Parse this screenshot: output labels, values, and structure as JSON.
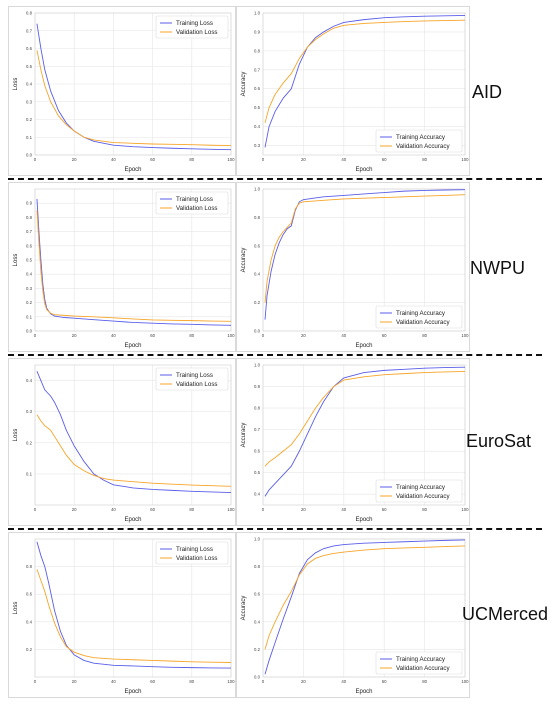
{
  "colors": {
    "training": "#5a5ee8",
    "validation": "#f7a52a",
    "grid": "#e6e6e6",
    "divider": "#111111"
  },
  "chart_data": [
    {
      "id": "aid-loss",
      "type": "line",
      "row_label": "AID",
      "xlabel": "Epoch",
      "ylabel": "Loss",
      "xlim": [
        0,
        100
      ],
      "ylim": [
        0,
        0.8
      ],
      "xticks": [
        0,
        20,
        40,
        60,
        80,
        100
      ],
      "yticks": [
        0,
        0.1,
        0.2,
        0.3,
        0.4,
        0.5,
        0.6,
        0.7,
        0.8
      ],
      "ytick_labels": [
        "0.0",
        "0.1",
        "0.2",
        "0.3",
        "0.4",
        "0.5",
        "0.6",
        "0.7",
        "0.8"
      ],
      "legend_loc": "top-right",
      "series": [
        {
          "name": "Training Loss",
          "x": [
            1,
            3,
            5,
            8,
            12,
            16,
            20,
            25,
            30,
            40,
            50,
            60,
            70,
            80,
            90,
            100
          ],
          "y": [
            0.74,
            0.6,
            0.48,
            0.36,
            0.25,
            0.18,
            0.135,
            0.1,
            0.077,
            0.055,
            0.047,
            0.042,
            0.038,
            0.035,
            0.032,
            0.03
          ]
        },
        {
          "name": "Validation Loss",
          "x": [
            1,
            3,
            5,
            8,
            12,
            16,
            20,
            25,
            30,
            40,
            50,
            60,
            70,
            80,
            90,
            100
          ],
          "y": [
            0.59,
            0.48,
            0.39,
            0.3,
            0.22,
            0.17,
            0.135,
            0.1,
            0.085,
            0.07,
            0.066,
            0.062,
            0.06,
            0.058,
            0.055,
            0.053
          ]
        }
      ]
    },
    {
      "id": "aid-acc",
      "type": "line",
      "row_label": "AID",
      "xlabel": "Epoch",
      "ylabel": "Accuracy",
      "xlim": [
        0,
        100
      ],
      "ylim": [
        0.25,
        1.0
      ],
      "xticks": [
        0,
        20,
        40,
        60,
        80,
        100
      ],
      "yticks": [
        0.3,
        0.4,
        0.5,
        0.6,
        0.7,
        0.8,
        0.9,
        1.0
      ],
      "ytick_labels": [
        "0.3",
        "0.4",
        "0.5",
        "0.6",
        "0.7",
        "0.8",
        "0.9",
        "1.0"
      ],
      "legend_loc": "lower-right",
      "series": [
        {
          "name": "Training Accuracy",
          "x": [
            1,
            3,
            6,
            10,
            14,
            18,
            22,
            26,
            30,
            35,
            40,
            50,
            60,
            70,
            80,
            90,
            100
          ],
          "y": [
            0.29,
            0.4,
            0.48,
            0.55,
            0.6,
            0.73,
            0.82,
            0.87,
            0.9,
            0.93,
            0.95,
            0.965,
            0.975,
            0.98,
            0.983,
            0.985,
            0.987
          ]
        },
        {
          "name": "Validation Accuracy",
          "x": [
            1,
            3,
            6,
            10,
            14,
            18,
            22,
            26,
            30,
            35,
            40,
            50,
            60,
            70,
            80,
            90,
            100
          ],
          "y": [
            0.42,
            0.5,
            0.57,
            0.63,
            0.68,
            0.76,
            0.82,
            0.86,
            0.89,
            0.92,
            0.935,
            0.945,
            0.95,
            0.955,
            0.958,
            0.96,
            0.962
          ]
        }
      ]
    },
    {
      "id": "nwpu-loss",
      "type": "line",
      "row_label": "NWPU",
      "xlabel": "Epoch",
      "ylabel": "Loss",
      "xlim": [
        0,
        100
      ],
      "ylim": [
        0,
        1.0
      ],
      "xticks": [
        0,
        20,
        40,
        60,
        80,
        100
      ],
      "yticks": [
        0,
        0.1,
        0.2,
        0.3,
        0.4,
        0.5,
        0.6,
        0.7,
        0.8,
        0.9
      ],
      "ytick_labels": [
        "0.0",
        "0.1",
        "0.2",
        "0.3",
        "0.4",
        "0.5",
        "0.6",
        "0.7",
        "0.8",
        "0.9"
      ],
      "legend_loc": "top-right",
      "series": [
        {
          "name": "Training Loss",
          "x": [
            1,
            2,
            3,
            4,
            5,
            6,
            8,
            10,
            15,
            20,
            30,
            40,
            50,
            60,
            70,
            80,
            90,
            100
          ],
          "y": [
            0.93,
            0.7,
            0.5,
            0.33,
            0.22,
            0.16,
            0.12,
            0.105,
            0.095,
            0.09,
            0.08,
            0.07,
            0.06,
            0.055,
            0.05,
            0.047,
            0.043,
            0.04
          ]
        },
        {
          "name": "Validation Loss",
          "x": [
            1,
            2,
            3,
            4,
            5,
            6,
            8,
            10,
            15,
            20,
            30,
            40,
            50,
            60,
            70,
            80,
            90,
            100
          ],
          "y": [
            0.85,
            0.62,
            0.42,
            0.28,
            0.19,
            0.15,
            0.125,
            0.115,
            0.11,
            0.105,
            0.1,
            0.093,
            0.085,
            0.078,
            0.075,
            0.073,
            0.07,
            0.068
          ]
        }
      ]
    },
    {
      "id": "nwpu-acc",
      "type": "line",
      "row_label": "NWPU",
      "xlabel": "Epoch",
      "ylabel": "Accuracy",
      "xlim": [
        0,
        100
      ],
      "ylim": [
        0.0,
        1.0
      ],
      "xticks": [
        0,
        20,
        40,
        60,
        80,
        100
      ],
      "yticks": [
        0.0,
        0.2,
        0.4,
        0.6,
        0.8,
        1.0
      ],
      "ytick_labels": [
        "0.0",
        "0.2",
        "0.4",
        "0.6",
        "0.8",
        "1.0"
      ],
      "legend_loc": "lower-right",
      "series": [
        {
          "name": "Training Accuracy",
          "x": [
            1,
            2,
            4,
            6,
            8,
            10,
            12,
            14,
            16,
            18,
            20,
            25,
            30,
            40,
            50,
            60,
            70,
            80,
            90,
            100
          ],
          "y": [
            0.08,
            0.25,
            0.42,
            0.54,
            0.62,
            0.68,
            0.72,
            0.74,
            0.85,
            0.91,
            0.925,
            0.935,
            0.945,
            0.955,
            0.965,
            0.975,
            0.985,
            0.99,
            0.993,
            0.995
          ]
        },
        {
          "name": "Validation Accuracy",
          "x": [
            1,
            2,
            4,
            6,
            8,
            10,
            12,
            14,
            16,
            18,
            20,
            25,
            30,
            40,
            50,
            60,
            70,
            80,
            90,
            100
          ],
          "y": [
            0.2,
            0.35,
            0.5,
            0.6,
            0.66,
            0.7,
            0.73,
            0.76,
            0.86,
            0.9,
            0.91,
            0.915,
            0.92,
            0.93,
            0.935,
            0.94,
            0.945,
            0.95,
            0.955,
            0.96
          ]
        }
      ]
    },
    {
      "id": "eurosat-loss",
      "type": "line",
      "row_label": "EuroSat",
      "xlabel": "Epoch",
      "ylabel": "Loss",
      "xlim": [
        0,
        100
      ],
      "ylim": [
        0,
        0.45
      ],
      "xticks": [
        0,
        20,
        40,
        60,
        80,
        100
      ],
      "yticks": [
        0.1,
        0.2,
        0.3,
        0.4
      ],
      "ytick_labels": [
        "0.1",
        "0.2",
        "0.3",
        "0.4"
      ],
      "legend_loc": "top-right",
      "series": [
        {
          "name": "Training Loss",
          "x": [
            1,
            3,
            5,
            8,
            10,
            13,
            16,
            20,
            25,
            30,
            35,
            40,
            50,
            60,
            70,
            80,
            90,
            100
          ],
          "y": [
            0.43,
            0.4,
            0.37,
            0.35,
            0.33,
            0.29,
            0.24,
            0.19,
            0.14,
            0.1,
            0.08,
            0.065,
            0.055,
            0.05,
            0.047,
            0.044,
            0.042,
            0.04
          ]
        },
        {
          "name": "Validation Loss",
          "x": [
            1,
            3,
            5,
            8,
            10,
            13,
            16,
            20,
            25,
            30,
            35,
            40,
            50,
            60,
            70,
            80,
            90,
            100
          ],
          "y": [
            0.29,
            0.27,
            0.255,
            0.24,
            0.22,
            0.19,
            0.16,
            0.13,
            0.11,
            0.095,
            0.085,
            0.08,
            0.075,
            0.07,
            0.067,
            0.064,
            0.062,
            0.06
          ]
        }
      ]
    },
    {
      "id": "eurosat-acc",
      "type": "line",
      "row_label": "EuroSat",
      "xlabel": "Epoch",
      "ylabel": "Accuracy",
      "xlim": [
        0,
        100
      ],
      "ylim": [
        0.35,
        1.0
      ],
      "xticks": [
        0,
        20,
        40,
        60,
        80,
        100
      ],
      "yticks": [
        0.4,
        0.5,
        0.6,
        0.7,
        0.8,
        0.9,
        1.0
      ],
      "ytick_labels": [
        "0.4",
        "0.5",
        "0.6",
        "0.7",
        "0.8",
        "0.9",
        "1.0"
      ],
      "legend_loc": "lower-right",
      "series": [
        {
          "name": "Training Accuracy",
          "x": [
            1,
            3,
            6,
            10,
            14,
            18,
            22,
            26,
            30,
            35,
            40,
            50,
            60,
            70,
            80,
            90,
            100
          ],
          "y": [
            0.39,
            0.42,
            0.45,
            0.49,
            0.53,
            0.6,
            0.68,
            0.76,
            0.83,
            0.9,
            0.94,
            0.965,
            0.975,
            0.98,
            0.985,
            0.988,
            0.99
          ]
        },
        {
          "name": "Validation Accuracy",
          "x": [
            1,
            3,
            6,
            10,
            14,
            18,
            22,
            26,
            30,
            35,
            40,
            50,
            60,
            70,
            80,
            90,
            100
          ],
          "y": [
            0.53,
            0.55,
            0.57,
            0.6,
            0.63,
            0.68,
            0.74,
            0.8,
            0.85,
            0.9,
            0.93,
            0.945,
            0.955,
            0.96,
            0.965,
            0.968,
            0.97
          ]
        }
      ]
    },
    {
      "id": "ucmerced-loss",
      "type": "line",
      "row_label": "UCMerced",
      "xlabel": "Epoch",
      "ylabel": "Loss",
      "xlim": [
        0,
        100
      ],
      "ylim": [
        0,
        1.0
      ],
      "xticks": [
        0,
        20,
        40,
        60,
        80,
        100
      ],
      "yticks": [
        0.2,
        0.4,
        0.6,
        0.8
      ],
      "ytick_labels": [
        "0.2",
        "0.4",
        "0.6",
        "0.8"
      ],
      "legend_loc": "top-right",
      "series": [
        {
          "name": "Training Loss",
          "x": [
            1,
            3,
            5,
            7,
            10,
            13,
            16,
            20,
            25,
            30,
            40,
            50,
            60,
            70,
            80,
            90,
            100
          ],
          "y": [
            0.98,
            0.88,
            0.8,
            0.68,
            0.48,
            0.33,
            0.23,
            0.16,
            0.12,
            0.1,
            0.085,
            0.08,
            0.075,
            0.07,
            0.068,
            0.066,
            0.065
          ]
        },
        {
          "name": "Validation Loss",
          "x": [
            1,
            3,
            5,
            7,
            10,
            13,
            16,
            20,
            25,
            30,
            40,
            50,
            60,
            70,
            80,
            90,
            100
          ],
          "y": [
            0.78,
            0.7,
            0.62,
            0.52,
            0.39,
            0.29,
            0.22,
            0.18,
            0.155,
            0.14,
            0.13,
            0.125,
            0.12,
            0.115,
            0.11,
            0.107,
            0.105
          ]
        }
      ]
    },
    {
      "id": "ucmerced-acc",
      "type": "line",
      "row_label": "UCMerced",
      "xlabel": "Epoch",
      "ylabel": "Accuracy",
      "xlim": [
        0,
        100
      ],
      "ylim": [
        0.0,
        1.0
      ],
      "xticks": [
        0,
        20,
        40,
        60,
        80,
        100
      ],
      "yticks": [
        0.0,
        0.2,
        0.4,
        0.6,
        0.8,
        1.0
      ],
      "ytick_labels": [
        "0.0",
        "0.2",
        "0.4",
        "0.6",
        "0.8",
        "1.0"
      ],
      "legend_loc": "lower-right",
      "series": [
        {
          "name": "Training Accuracy",
          "x": [
            1,
            3,
            6,
            10,
            14,
            18,
            22,
            26,
            30,
            35,
            40,
            50,
            60,
            70,
            80,
            90,
            100
          ],
          "y": [
            0.02,
            0.12,
            0.25,
            0.42,
            0.58,
            0.75,
            0.85,
            0.9,
            0.93,
            0.95,
            0.96,
            0.97,
            0.975,
            0.98,
            0.985,
            0.99,
            0.993
          ]
        },
        {
          "name": "Validation Accuracy",
          "x": [
            1,
            3,
            6,
            10,
            14,
            18,
            22,
            26,
            30,
            35,
            40,
            50,
            60,
            70,
            80,
            90,
            100
          ],
          "y": [
            0.2,
            0.3,
            0.4,
            0.52,
            0.62,
            0.74,
            0.82,
            0.86,
            0.88,
            0.895,
            0.905,
            0.92,
            0.93,
            0.935,
            0.94,
            0.945,
            0.95
          ]
        }
      ]
    }
  ],
  "row_labels": [
    "AID",
    "NWPU",
    "EuroSat",
    "UCMerced"
  ]
}
